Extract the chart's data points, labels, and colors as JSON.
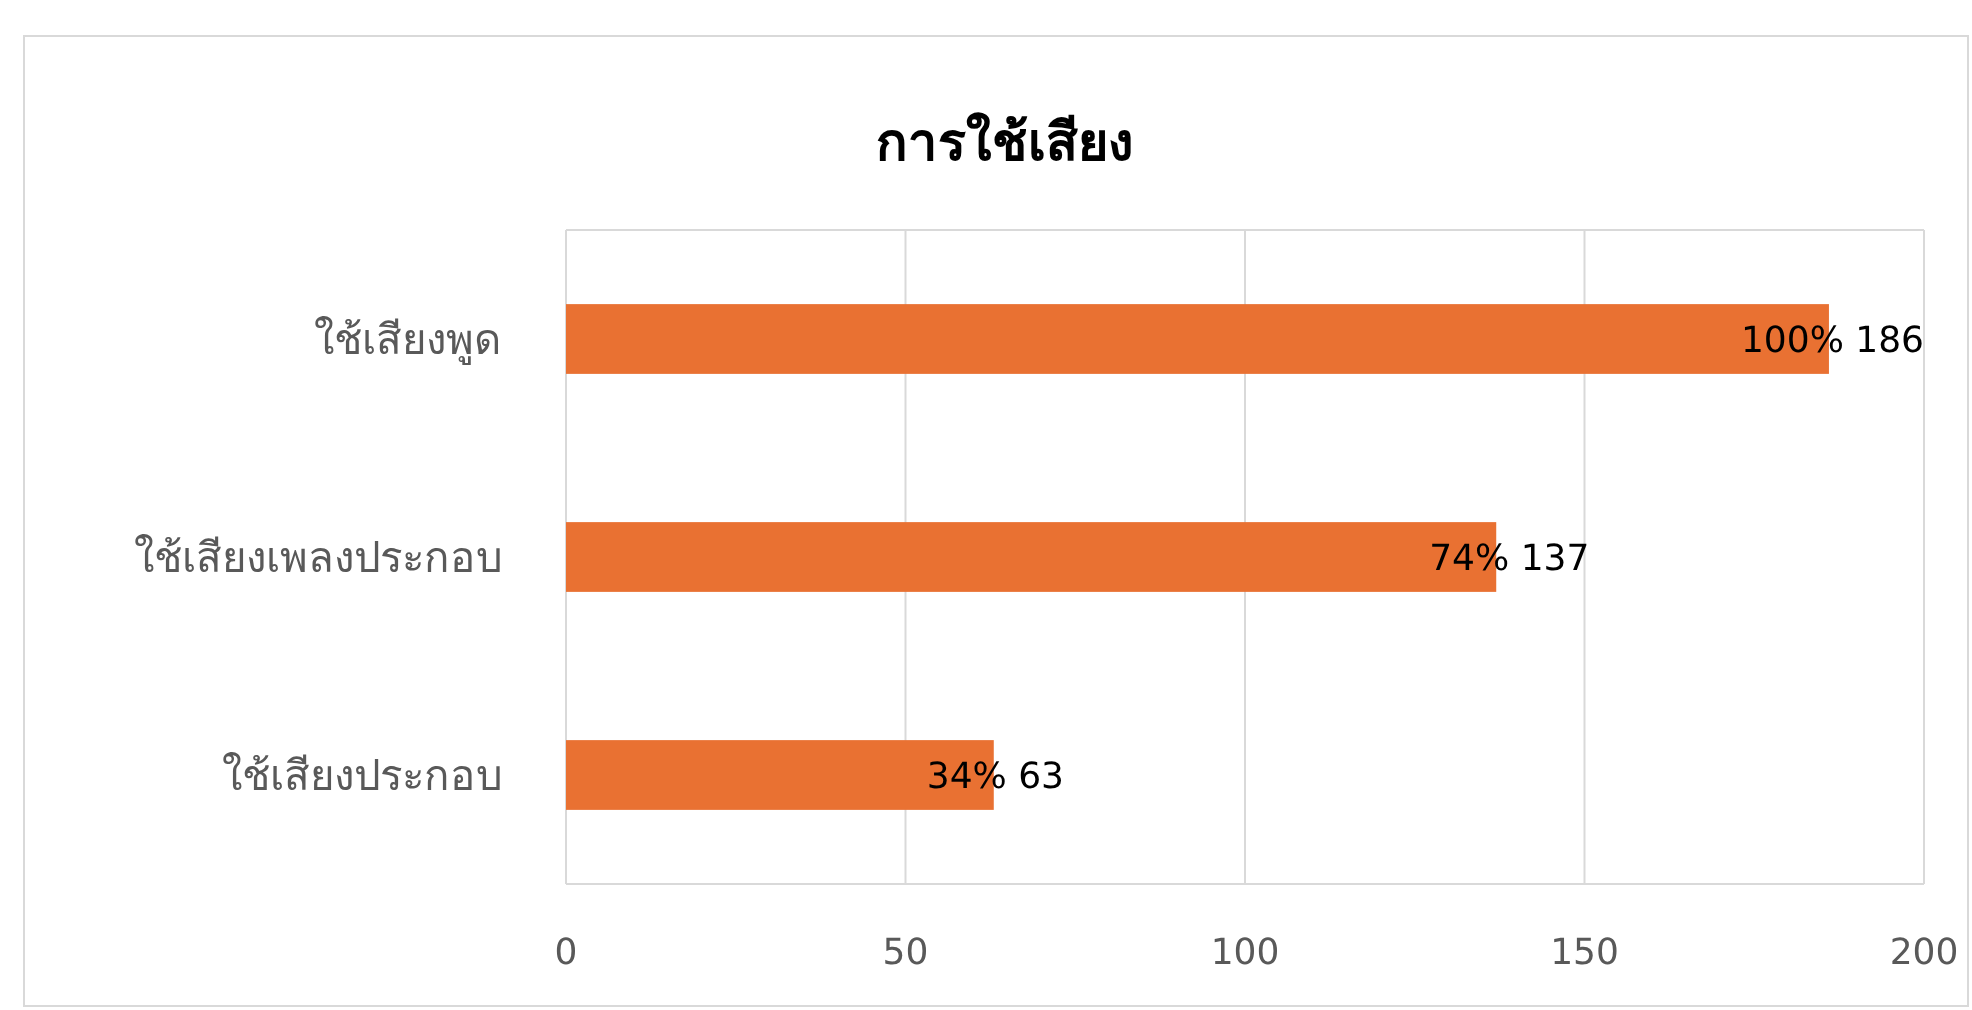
{
  "chart_data": {
    "type": "bar",
    "orientation": "horizontal",
    "title": "การใช้เสียง",
    "categories": [
      "ใช้เสียงพูด",
      "ใช้เสียงเพลงประกอบ",
      "ใช้เสียงประกอบ"
    ],
    "values": [
      186,
      137,
      63
    ],
    "color": "#e97132",
    "value_labels": [
      "100% 186",
      "74% 137",
      "34% 63"
    ],
    "xlim": [
      0,
      200
    ],
    "xticks": [
      0,
      50,
      100,
      150,
      200
    ],
    "grid": "x"
  }
}
